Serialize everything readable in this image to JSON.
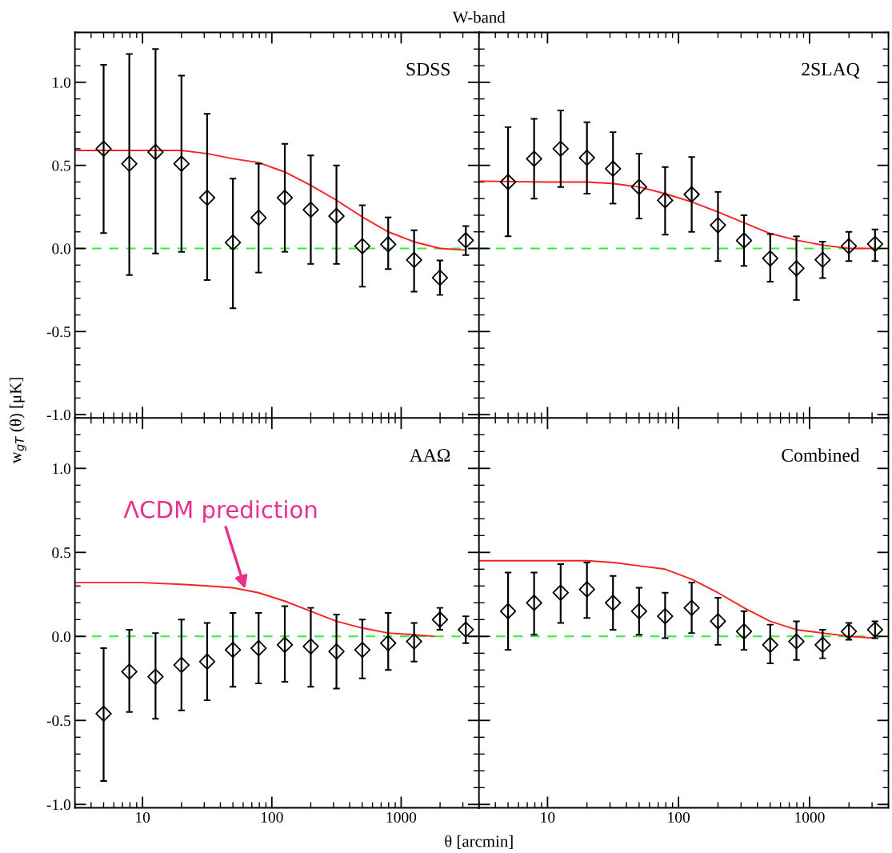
{
  "chart_data": [
    {
      "type": "scatter",
      "title": "SDSS",
      "annotations": [
        "W-band"
      ],
      "ylabel": "w$_{gT}$ (θ) [μK]",
      "log": "x",
      "xlim": [
        3,
        4000
      ],
      "ylim": [
        -1.02,
        1.3
      ],
      "xticks": [
        {
          "value": 10,
          "label": null
        },
        {
          "value": 100,
          "label": null
        },
        {
          "value": 1000,
          "label": null
        }
      ],
      "yticks": [
        {
          "value": -1.0,
          "label": "-1.0"
        },
        {
          "value": -0.5,
          "label": "-0.5"
        },
        {
          "value": 0.0,
          "label": "0.0"
        },
        {
          "value": 0.5,
          "label": "0.5"
        },
        {
          "value": 1.0,
          "label": "1.0"
        }
      ],
      "tick_labels": "y",
      "grid": false,
      "ref_lines": [
        {
          "axis": "y",
          "value": 0,
          "color": "#33ee33",
          "line_style": "dashed"
        }
      ],
      "series": [
        {
          "marker": "diamond",
          "color": "#000000",
          "x": [
            5,
            7.9,
            12.6,
            20,
            31.6,
            50,
            79,
            126,
            200,
            316,
            501,
            794,
            1259,
            1995,
            3162
          ],
          "values": [
            0.6,
            0.51,
            0.58,
            0.51,
            0.305,
            0.036,
            0.185,
            0.305,
            0.233,
            0.195,
            0.014,
            0.025,
            -0.069,
            -0.176,
            0.049
          ],
          "errors": [
            [
              0.093,
              1.105
            ],
            [
              -0.16,
              1.17
            ],
            [
              -0.03,
              1.2
            ],
            [
              -0.02,
              1.04
            ],
            [
              -0.19,
              0.81
            ],
            [
              -0.36,
              0.42
            ],
            [
              -0.145,
              0.51
            ],
            [
              -0.02,
              0.63
            ],
            [
              -0.093,
              0.56
            ],
            [
              -0.093,
              0.5
            ],
            [
              -0.23,
              0.26
            ],
            [
              -0.124,
              0.187
            ],
            [
              -0.26,
              0.11
            ],
            [
              -0.28,
              -0.072
            ],
            [
              -0.04,
              0.135
            ]
          ]
        },
        {
          "type": "line",
          "color": "#ff2020",
          "x": [
            3,
            10,
            20,
            32,
            50,
            79,
            126,
            200,
            316,
            500,
            794,
            1259,
            2000,
            3162
          ],
          "values": [
            0.59,
            0.59,
            0.59,
            0.57,
            0.54,
            0.517,
            0.46,
            0.38,
            0.29,
            0.19,
            0.1,
            0.04,
            0.0,
            -0.01
          ]
        }
      ]
    },
    {
      "type": "scatter",
      "title": "2SLAQ",
      "log": "x",
      "xlim": [
        3,
        4000
      ],
      "ylim": [
        -1.02,
        1.3
      ],
      "xticks": [
        {
          "value": 10,
          "label": null
        },
        {
          "value": 100,
          "label": null
        },
        {
          "value": 1000,
          "label": null
        }
      ],
      "yticks": [
        {
          "value": -1.0,
          "label": null
        },
        {
          "value": -0.5,
          "label": null
        },
        {
          "value": 0.0,
          "label": null
        },
        {
          "value": 0.5,
          "label": null
        },
        {
          "value": 1.0,
          "label": null
        }
      ],
      "tick_labels": false,
      "grid": false,
      "ref_lines": [
        {
          "axis": "y",
          "value": 0,
          "color": "#33ee33",
          "line_style": "dashed"
        }
      ],
      "series": [
        {
          "marker": "diamond",
          "color": "#000000",
          "x": [
            5,
            7.9,
            12.6,
            20,
            31.6,
            50,
            79,
            126,
            200,
            316,
            501,
            794,
            1259,
            1995,
            3162
          ],
          "values": [
            0.4,
            0.54,
            0.6,
            0.546,
            0.48,
            0.37,
            0.29,
            0.325,
            0.14,
            0.048,
            -0.06,
            -0.12,
            -0.068,
            0.014,
            0.027
          ],
          "errors": [
            [
              0.073,
              0.73
            ],
            [
              0.3,
              0.78
            ],
            [
              0.37,
              0.83
            ],
            [
              0.33,
              0.76
            ],
            [
              0.27,
              0.7
            ],
            [
              0.18,
              0.57
            ],
            [
              0.083,
              0.49
            ],
            [
              0.1,
              0.55
            ],
            [
              -0.076,
              0.34
            ],
            [
              -0.105,
              0.2
            ],
            [
              -0.2,
              0.087
            ],
            [
              -0.31,
              0.073
            ],
            [
              -0.178,
              0.041
            ],
            [
              -0.076,
              0.1
            ],
            [
              -0.076,
              0.114
            ]
          ]
        },
        {
          "type": "line",
          "color": "#ff2020",
          "x": [
            3,
            10,
            20,
            32,
            50,
            79,
            126,
            200,
            316,
            500,
            794,
            1259,
            2000,
            3162
          ],
          "values": [
            0.405,
            0.4,
            0.4,
            0.39,
            0.37,
            0.33,
            0.28,
            0.22,
            0.155,
            0.09,
            0.05,
            0.02,
            0.0,
            0.0
          ]
        }
      ]
    },
    {
      "type": "scatter",
      "title": "AAΩ",
      "xlabel": "θ [arcmin]",
      "annotations": [
        {
          "text": "ΛCDM prediction",
          "x": 63,
          "y": 0.27
        }
      ],
      "log": "x",
      "xlim": [
        3,
        4000
      ],
      "ylim": [
        -1.02,
        1.3
      ],
      "xticks": [
        10,
        100,
        1000
      ],
      "yticks": [
        {
          "value": -1.0,
          "label": "-1.0"
        },
        {
          "value": -0.5,
          "label": "-0.5"
        },
        {
          "value": 0.0,
          "label": "0.0"
        },
        {
          "value": 0.5,
          "label": "0.5"
        },
        {
          "value": 1.0,
          "label": "1.0"
        }
      ],
      "grid": false,
      "ref_lines": [
        {
          "axis": "y",
          "value": 0,
          "color": "#33ee33",
          "line_style": "dashed"
        }
      ],
      "series": [
        {
          "marker": "diamond",
          "color": "#000000",
          "x": [
            5,
            7.9,
            12.6,
            20,
            31.6,
            50,
            79,
            126,
            200,
            316,
            501,
            794,
            1259,
            1995,
            3162
          ],
          "values": [
            -0.46,
            -0.21,
            -0.24,
            -0.17,
            -0.15,
            -0.08,
            -0.07,
            -0.05,
            -0.06,
            -0.09,
            -0.08,
            -0.04,
            -0.03,
            0.1,
            0.04
          ],
          "errors": [
            [
              -0.86,
              -0.07
            ],
            [
              -0.45,
              0.04
            ],
            [
              -0.49,
              0.02
            ],
            [
              -0.44,
              0.1
            ],
            [
              -0.38,
              0.08
            ],
            [
              -0.3,
              0.14
            ],
            [
              -0.28,
              0.14
            ],
            [
              -0.27,
              0.18
            ],
            [
              -0.3,
              0.17
            ],
            [
              -0.31,
              0.13
            ],
            [
              -0.25,
              0.1
            ],
            [
              -0.2,
              0.14
            ],
            [
              -0.15,
              0.08
            ],
            [
              0.04,
              0.17
            ],
            [
              -0.04,
              0.12
            ]
          ]
        },
        {
          "type": "line",
          "color": "#ff2020",
          "x": [
            3,
            10,
            20,
            32,
            50,
            79,
            126,
            200,
            316,
            500,
            794,
            1259,
            1800
          ],
          "values": [
            0.32,
            0.32,
            0.31,
            0.3,
            0.29,
            0.26,
            0.21,
            0.15,
            0.09,
            0.05,
            0.02,
            0.01,
            0.0
          ]
        }
      ]
    },
    {
      "type": "scatter",
      "title": "Combined",
      "log": "x",
      "xlim": [
        3,
        4000
      ],
      "ylim": [
        -1.02,
        1.3
      ],
      "xticks": [
        10,
        100,
        1000
      ],
      "yticks": [
        {
          "value": -1.0,
          "label": null
        },
        {
          "value": -0.5,
          "label": null
        },
        {
          "value": 0.0,
          "label": null
        },
        {
          "value": 0.5,
          "label": null
        },
        {
          "value": 1.0,
          "label": null
        }
      ],
      "tick_labels": "x",
      "grid": false,
      "ref_lines": [
        {
          "axis": "y",
          "value": 0,
          "color": "#33ee33",
          "line_style": "dashed"
        }
      ],
      "series": [
        {
          "marker": "diamond",
          "color": "#000000",
          "x": [
            5,
            7.9,
            12.6,
            20,
            31.6,
            50,
            79,
            126,
            200,
            316,
            501,
            794,
            1259,
            1995,
            3162
          ],
          "values": [
            0.15,
            0.2,
            0.26,
            0.28,
            0.2,
            0.15,
            0.12,
            0.17,
            0.09,
            0.03,
            -0.05,
            -0.03,
            -0.05,
            0.03,
            0.04
          ],
          "errors": [
            [
              -0.08,
              0.38
            ],
            [
              0.01,
              0.38
            ],
            [
              0.08,
              0.43
            ],
            [
              0.11,
              0.44
            ],
            [
              0.04,
              0.36
            ],
            [
              0.01,
              0.29
            ],
            [
              -0.01,
              0.26
            ],
            [
              0.02,
              0.32
            ],
            [
              -0.05,
              0.23
            ],
            [
              -0.08,
              0.15
            ],
            [
              -0.16,
              0.07
            ],
            [
              -0.14,
              0.09
            ],
            [
              -0.13,
              0.04
            ],
            [
              -0.02,
              0.08
            ],
            [
              -0.01,
              0.09
            ]
          ]
        },
        {
          "type": "line",
          "color": "#ff2020",
          "x": [
            3,
            10,
            20,
            32,
            50,
            79,
            126,
            200,
            316,
            500,
            794,
            1259,
            2000,
            3162
          ],
          "values": [
            0.45,
            0.45,
            0.45,
            0.44,
            0.42,
            0.4,
            0.34,
            0.26,
            0.17,
            0.09,
            0.04,
            0.02,
            0.0,
            -0.01
          ]
        }
      ]
    }
  ]
}
